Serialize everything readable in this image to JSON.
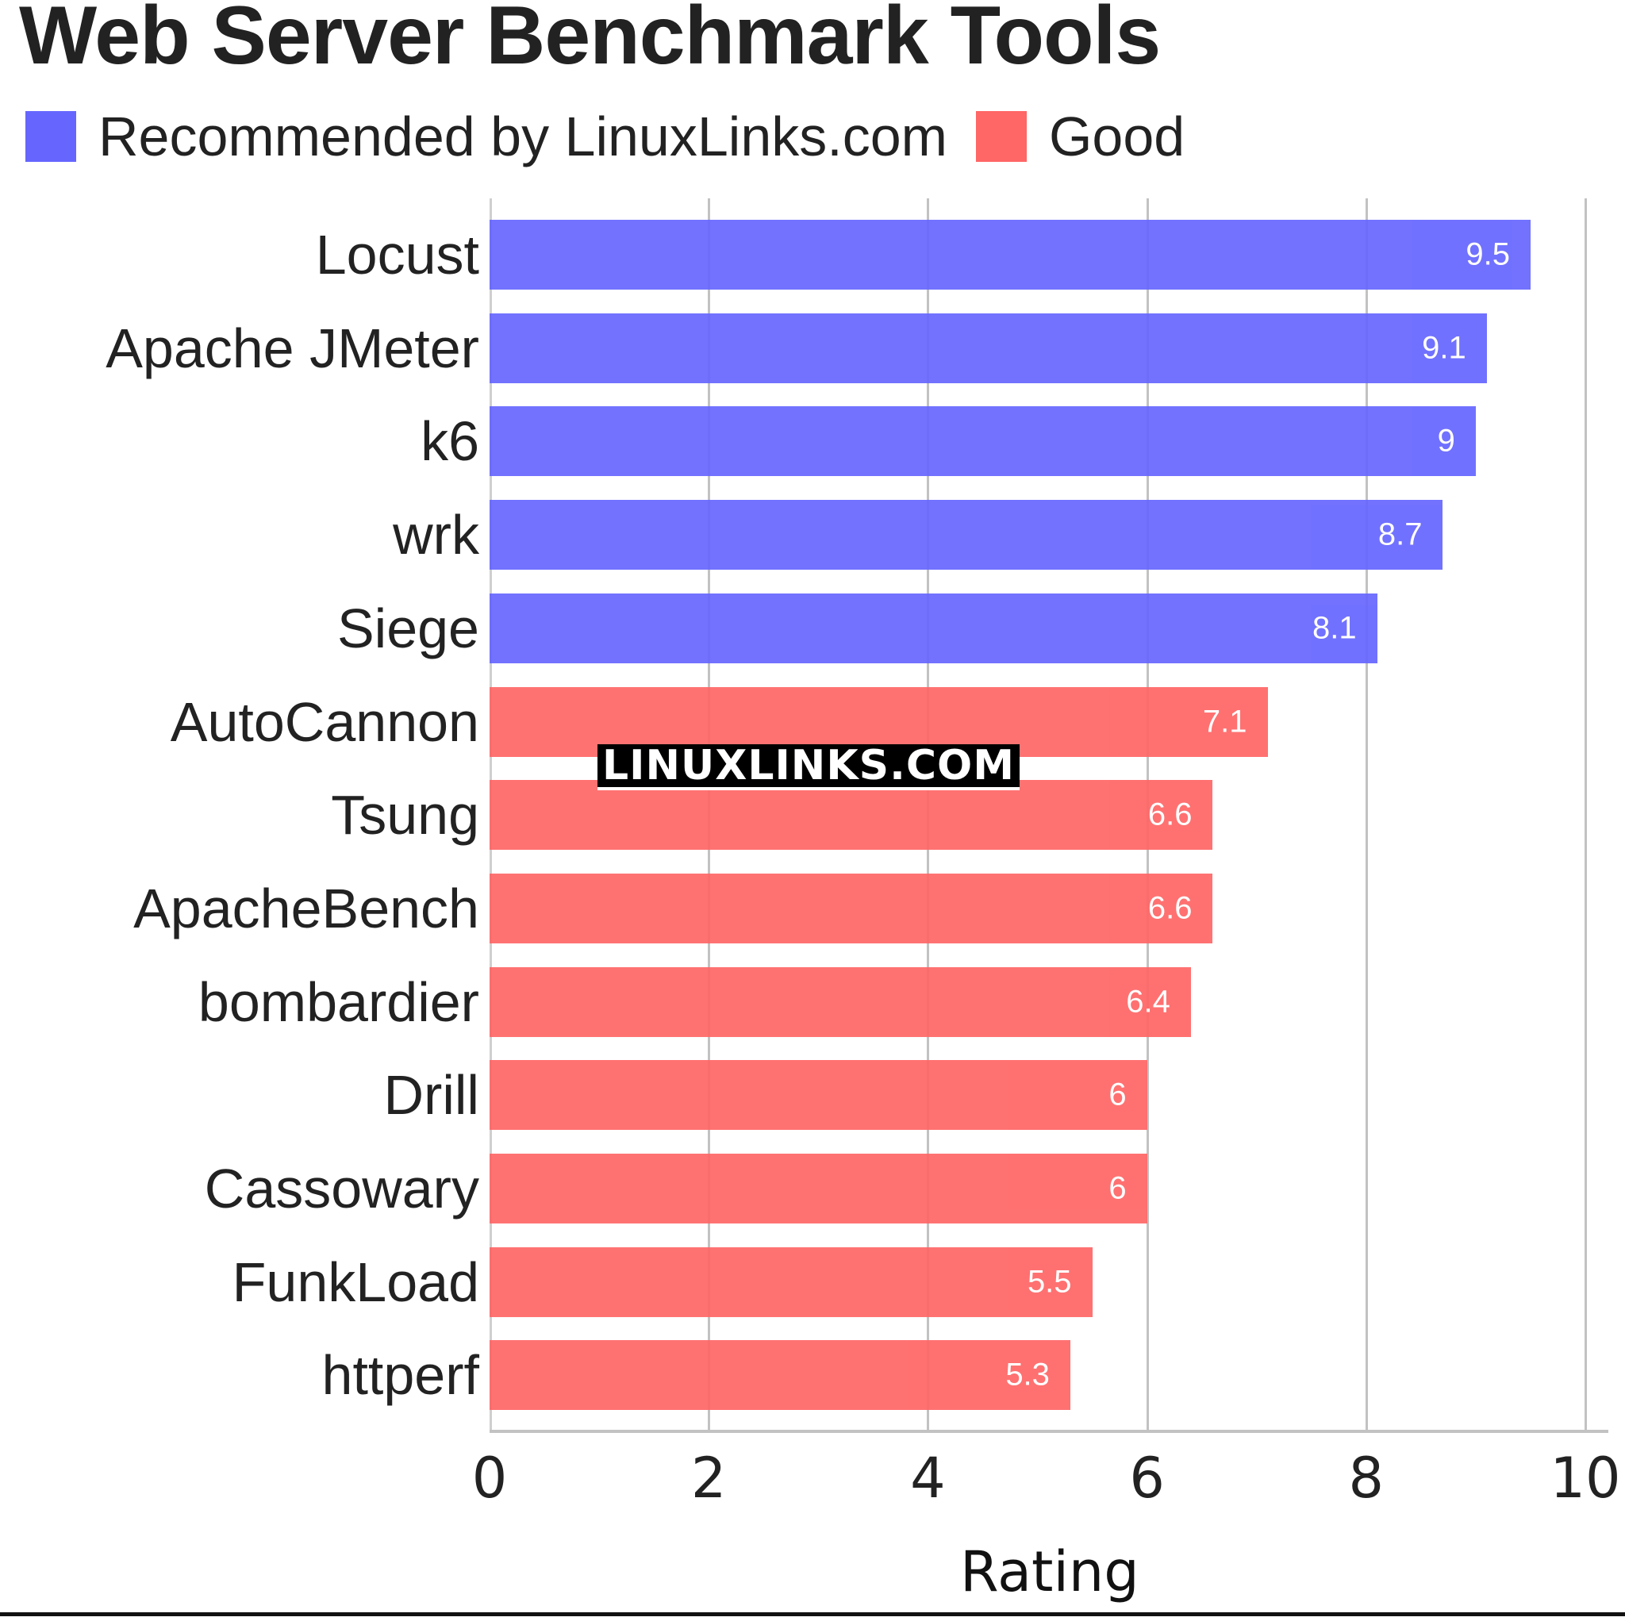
{
  "title": "Web Server Benchmark Tools",
  "legend": [
    {
      "label": "Recommended by LinuxLinks.com",
      "color": "#6666ff"
    },
    {
      "label": "Good",
      "color": "#ff6666"
    }
  ],
  "watermark": "LINUXLINKS.COM",
  "chart_data": {
    "type": "bar",
    "orientation": "horizontal",
    "title": "Web Server Benchmark Tools",
    "xlabel": "Rating",
    "ylabel": "",
    "xlim": [
      0,
      10
    ],
    "xticks": [
      "0",
      "2",
      "4",
      "6",
      "8",
      "10"
    ],
    "grid": true,
    "legend_position": "top",
    "categories": [
      "Locust",
      "Apache JMeter",
      "k6",
      "wrk",
      "Siege",
      "AutoCannon",
      "Tsung",
      "ApacheBench",
      "bombardier",
      "Drill",
      "Cassowary",
      "FunkLoad",
      "httperf"
    ],
    "values": [
      9.5,
      9.1,
      9,
      8.7,
      8.1,
      7.1,
      6.6,
      6.6,
      6.4,
      6,
      6,
      5.5,
      5.3
    ],
    "value_labels": [
      "9.5",
      "9.1",
      "9",
      "8.7",
      "8.1",
      "7.1",
      "6.6",
      "6.6",
      "6.4",
      "6",
      "6",
      "5.5",
      "5.3"
    ],
    "series_membership": [
      "Recommended by LinuxLinks.com",
      "Recommended by LinuxLinks.com",
      "Recommended by LinuxLinks.com",
      "Recommended by LinuxLinks.com",
      "Recommended by LinuxLinks.com",
      "Good",
      "Good",
      "Good",
      "Good",
      "Good",
      "Good",
      "Good",
      "Good"
    ],
    "colors": {
      "Recommended by LinuxLinks.com": "#6666ff",
      "Good": "#ff6666"
    }
  }
}
